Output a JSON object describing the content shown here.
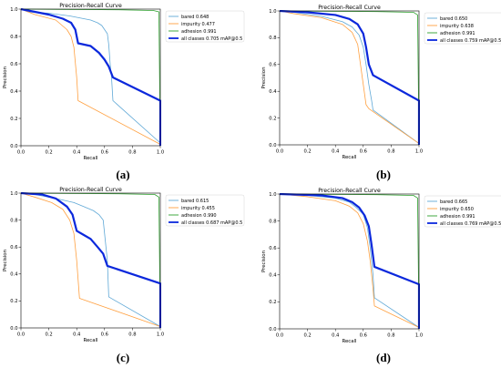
{
  "chart_data": [
    {
      "type": "line",
      "title": "Precision-Recall Curve",
      "xlabel": "Recall",
      "ylabel": "Precision",
      "xlim": [
        0,
        1
      ],
      "ylim": [
        0,
        1
      ],
      "xticks": [
        "0.0",
        "0.2",
        "0.4",
        "0.6",
        "0.8",
        "1.0"
      ],
      "yticks": [
        "0.0",
        "0.2",
        "0.4",
        "0.6",
        "0.8",
        "1.0"
      ],
      "grid": false,
      "legend_position": "top-right",
      "caption": "(a)",
      "series": [
        {
          "name": "bared 0.648",
          "color": "#5fa8d6",
          "width": 0.8,
          "points": [
            [
              0,
              1
            ],
            [
              0.05,
              0.98
            ],
            [
              0.2,
              0.97
            ],
            [
              0.35,
              0.95
            ],
            [
              0.45,
              0.93
            ],
            [
              0.5,
              0.92
            ],
            [
              0.55,
              0.9
            ],
            [
              0.58,
              0.88
            ],
            [
              0.6,
              0.85
            ],
            [
              0.62,
              0.82
            ],
            [
              0.63,
              0.74
            ],
            [
              0.64,
              0.6
            ],
            [
              0.65,
              0.5
            ],
            [
              0.66,
              0.33
            ],
            [
              1.0,
              0.02
            ]
          ]
        },
        {
          "name": "impurity 0.477",
          "color": "#ffa040",
          "width": 0.8,
          "points": [
            [
              0,
              1
            ],
            [
              0.1,
              0.96
            ],
            [
              0.25,
              0.92
            ],
            [
              0.33,
              0.85
            ],
            [
              0.36,
              0.8
            ],
            [
              0.38,
              0.72
            ],
            [
              0.4,
              0.5
            ],
            [
              0.41,
              0.33
            ],
            [
              1.0,
              0.01
            ]
          ]
        },
        {
          "name": "adhesion 0.991",
          "color": "#2ca02c",
          "width": 0.8,
          "points": [
            [
              0,
              1
            ],
            [
              0.7,
              0.995
            ],
            [
              0.95,
              0.99
            ],
            [
              0.99,
              0.98
            ],
            [
              1.0,
              0
            ]
          ]
        },
        {
          "name": "all classes 0.705 mAP@0.5",
          "color": "#0b28dc",
          "width": 2.2,
          "points": [
            [
              0,
              1
            ],
            [
              0.1,
              0.98
            ],
            [
              0.2,
              0.96
            ],
            [
              0.3,
              0.93
            ],
            [
              0.36,
              0.9
            ],
            [
              0.39,
              0.85
            ],
            [
              0.41,
              0.75
            ],
            [
              0.5,
              0.73
            ],
            [
              0.56,
              0.68
            ],
            [
              0.6,
              0.63
            ],
            [
              0.63,
              0.58
            ],
            [
              0.66,
              0.5
            ],
            [
              1.0,
              0.33
            ],
            [
              1.0,
              0
            ]
          ]
        }
      ]
    },
    {
      "type": "line",
      "title": "Precision-Recall Curve",
      "xlabel": "Recall",
      "ylabel": "Precision",
      "xlim": [
        0,
        1
      ],
      "ylim": [
        0,
        1
      ],
      "xticks": [
        "0.0",
        "0.2",
        "0.4",
        "0.6",
        "0.8",
        "1.0"
      ],
      "yticks": [
        "0.0",
        "0.2",
        "0.4",
        "0.6",
        "0.8",
        "1.0"
      ],
      "grid": false,
      "legend_position": "top-right",
      "caption": "(b)",
      "series": [
        {
          "name": "bared 0.650",
          "color": "#5fa8d6",
          "width": 0.8,
          "points": [
            [
              0,
              1
            ],
            [
              0.1,
              0.99
            ],
            [
              0.3,
              0.96
            ],
            [
              0.45,
              0.92
            ],
            [
              0.52,
              0.88
            ],
            [
              0.57,
              0.82
            ],
            [
              0.6,
              0.73
            ],
            [
              0.62,
              0.6
            ],
            [
              0.64,
              0.45
            ],
            [
              0.66,
              0.33
            ],
            [
              0.67,
              0.26
            ],
            [
              1.0,
              0.01
            ]
          ]
        },
        {
          "name": "impurity 0.638",
          "color": "#ffa040",
          "width": 0.8,
          "points": [
            [
              0,
              1
            ],
            [
              0.1,
              0.98
            ],
            [
              0.3,
              0.95
            ],
            [
              0.45,
              0.9
            ],
            [
              0.52,
              0.84
            ],
            [
              0.56,
              0.75
            ],
            [
              0.58,
              0.6
            ],
            [
              0.6,
              0.45
            ],
            [
              0.62,
              0.3
            ],
            [
              0.64,
              0.27
            ],
            [
              1.0,
              0.01
            ]
          ]
        },
        {
          "name": "adhesion 0.991",
          "color": "#2ca02c",
          "width": 0.8,
          "points": [
            [
              0,
              1
            ],
            [
              0.7,
              0.995
            ],
            [
              0.96,
              0.99
            ],
            [
              0.99,
              0.97
            ],
            [
              1.0,
              0
            ]
          ]
        },
        {
          "name": "all classes 0.759 mAP@0.5",
          "color": "#0b28dc",
          "width": 2.2,
          "points": [
            [
              0,
              1
            ],
            [
              0.2,
              0.99
            ],
            [
              0.4,
              0.97
            ],
            [
              0.5,
              0.94
            ],
            [
              0.56,
              0.9
            ],
            [
              0.6,
              0.83
            ],
            [
              0.62,
              0.73
            ],
            [
              0.64,
              0.6
            ],
            [
              0.67,
              0.52
            ],
            [
              1.0,
              0.33
            ],
            [
              1.0,
              0
            ]
          ]
        }
      ]
    },
    {
      "type": "line",
      "title": "Precision-Recall Curve",
      "xlabel": "Recall",
      "ylabel": "Precision",
      "xlim": [
        0,
        1
      ],
      "ylim": [
        0,
        1
      ],
      "xticks": [
        "0.0",
        "0.2",
        "0.4",
        "0.6",
        "0.8",
        "1.0"
      ],
      "yticks": [
        "0.0",
        "0.2",
        "0.4",
        "0.6",
        "0.8",
        "1.0"
      ],
      "grid": false,
      "legend_position": "top-right",
      "caption": "(c)",
      "series": [
        {
          "name": "bared 0.615",
          "color": "#5fa8d6",
          "width": 0.8,
          "points": [
            [
              0,
              1
            ],
            [
              0.1,
              0.99
            ],
            [
              0.25,
              0.96
            ],
            [
              0.38,
              0.93
            ],
            [
              0.45,
              0.9
            ],
            [
              0.52,
              0.87
            ],
            [
              0.56,
              0.84
            ],
            [
              0.59,
              0.8
            ],
            [
              0.6,
              0.7
            ],
            [
              0.62,
              0.5
            ],
            [
              0.63,
              0.23
            ],
            [
              1.0,
              0.01
            ]
          ]
        },
        {
          "name": "impurity 0.455",
          "color": "#ffa040",
          "width": 0.8,
          "points": [
            [
              0,
              1
            ],
            [
              0.1,
              0.97
            ],
            [
              0.22,
              0.93
            ],
            [
              0.3,
              0.88
            ],
            [
              0.35,
              0.8
            ],
            [
              0.38,
              0.7
            ],
            [
              0.4,
              0.5
            ],
            [
              0.42,
              0.22
            ],
            [
              1.0,
              0.01
            ]
          ]
        },
        {
          "name": "adhesion 0.990",
          "color": "#2ca02c",
          "width": 0.8,
          "points": [
            [
              0,
              1
            ],
            [
              0.7,
              0.995
            ],
            [
              0.96,
              0.99
            ],
            [
              0.99,
              0.97
            ],
            [
              1.0,
              0
            ]
          ]
        },
        {
          "name": "all classes 0.687 mAP@0.5",
          "color": "#0b28dc",
          "width": 2.2,
          "points": [
            [
              0,
              1
            ],
            [
              0.15,
              0.99
            ],
            [
              0.25,
              0.96
            ],
            [
              0.33,
              0.9
            ],
            [
              0.37,
              0.84
            ],
            [
              0.4,
              0.72
            ],
            [
              0.45,
              0.69
            ],
            [
              0.5,
              0.66
            ],
            [
              0.55,
              0.6
            ],
            [
              0.59,
              0.55
            ],
            [
              0.62,
              0.46
            ],
            [
              1.0,
              0.33
            ],
            [
              1.0,
              0
            ]
          ]
        }
      ]
    },
    {
      "type": "line",
      "title": "Precision-Recall Curve",
      "xlabel": "Recall",
      "ylabel": "Precision",
      "xlim": [
        0,
        1
      ],
      "ylim": [
        0,
        1
      ],
      "xticks": [
        "0.0",
        "0.2",
        "0.4",
        "0.6",
        "0.8",
        "1.0"
      ],
      "yticks": [
        "0.0",
        "0.2",
        "0.4",
        "0.6",
        "0.8",
        "1.0"
      ],
      "grid": false,
      "legend_position": "top-right",
      "caption": "(d)",
      "series": [
        {
          "name": "bared 0.665",
          "color": "#5fa8d6",
          "width": 0.8,
          "points": [
            [
              0,
              1
            ],
            [
              0.2,
              0.99
            ],
            [
              0.4,
              0.97
            ],
            [
              0.5,
              0.94
            ],
            [
              0.55,
              0.9
            ],
            [
              0.6,
              0.85
            ],
            [
              0.63,
              0.75
            ],
            [
              0.65,
              0.6
            ],
            [
              0.67,
              0.4
            ],
            [
              0.68,
              0.23
            ],
            [
              1.0,
              0.01
            ]
          ]
        },
        {
          "name": "impurity 0.650",
          "color": "#ffa040",
          "width": 0.8,
          "points": [
            [
              0,
              1
            ],
            [
              0.2,
              0.98
            ],
            [
              0.4,
              0.95
            ],
            [
              0.5,
              0.91
            ],
            [
              0.56,
              0.86
            ],
            [
              0.6,
              0.78
            ],
            [
              0.63,
              0.65
            ],
            [
              0.65,
              0.5
            ],
            [
              0.67,
              0.3
            ],
            [
              0.68,
              0.17
            ],
            [
              1.0,
              0.01
            ]
          ]
        },
        {
          "name": "adhesion 0.991",
          "color": "#2ca02c",
          "width": 0.8,
          "points": [
            [
              0,
              1
            ],
            [
              0.7,
              0.995
            ],
            [
              0.96,
              0.99
            ],
            [
              0.99,
              0.97
            ],
            [
              1.0,
              0
            ]
          ]
        },
        {
          "name": "all classes 0.769 mAP@0.5",
          "color": "#0b28dc",
          "width": 2.2,
          "points": [
            [
              0,
              1
            ],
            [
              0.3,
              0.99
            ],
            [
              0.45,
              0.97
            ],
            [
              0.52,
              0.94
            ],
            [
              0.57,
              0.9
            ],
            [
              0.61,
              0.84
            ],
            [
              0.64,
              0.76
            ],
            [
              0.66,
              0.62
            ],
            [
              0.68,
              0.46
            ],
            [
              1.0,
              0.33
            ],
            [
              1.0,
              0
            ]
          ]
        }
      ]
    }
  ]
}
